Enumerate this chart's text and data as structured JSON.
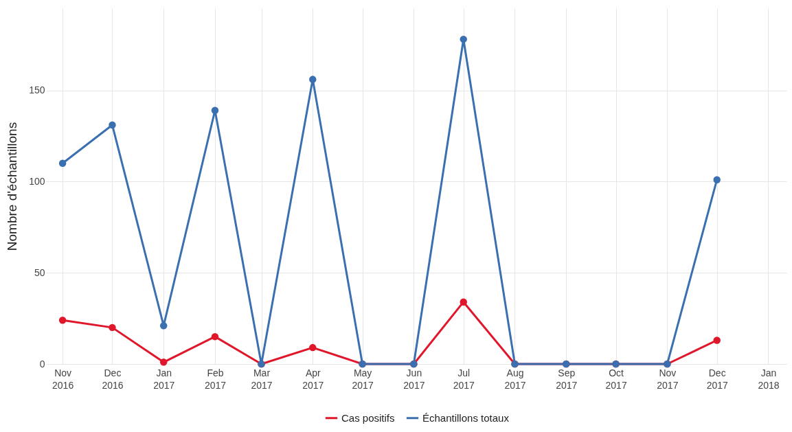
{
  "chart_data": {
    "type": "line",
    "ylabel": "Nombre d'échantillons",
    "x": [
      "2016-11",
      "2016-12",
      "2017-01",
      "2017-02",
      "2017-03",
      "2017-04",
      "2017-05",
      "2017-06",
      "2017-07",
      "2017-08",
      "2017-09",
      "2017-10",
      "2017-11",
      "2017-12"
    ],
    "series": [
      {
        "name": "Cas positifs",
        "color": "#e0172b",
        "values": [
          24,
          20,
          1,
          15,
          0,
          9,
          0,
          0,
          34,
          0,
          0,
          0,
          0,
          13
        ]
      },
      {
        "name": "Échantillons totaux",
        "color": "#3a6fb0",
        "values": [
          110,
          131,
          21,
          139,
          0,
          156,
          0,
          0,
          178,
          0,
          0,
          0,
          0,
          101
        ]
      }
    ],
    "xlim": [
      "2016-10-22",
      "2018-01-12"
    ],
    "xticks": [
      {
        "value": "2016-11",
        "label": "Nov 2016"
      },
      {
        "value": "2016-12",
        "label": "Dec 2016"
      },
      {
        "value": "2017-01",
        "label": "Jan 2017"
      },
      {
        "value": "2017-02",
        "label": "Feb 2017"
      },
      {
        "value": "2017-03",
        "label": "Mar 2017"
      },
      {
        "value": "2017-04",
        "label": "Apr 2017"
      },
      {
        "value": "2017-05",
        "label": "May 2017"
      },
      {
        "value": "2017-06",
        "label": "Jun 2017"
      },
      {
        "value": "2017-07",
        "label": "Jul 2017"
      },
      {
        "value": "2017-08",
        "label": "Aug 2017"
      },
      {
        "value": "2017-09",
        "label": "Sep 2017"
      },
      {
        "value": "2017-10",
        "label": "Oct 2017"
      },
      {
        "value": "2017-11",
        "label": "Nov 2017"
      },
      {
        "value": "2017-12",
        "label": "Dec 2017"
      },
      {
        "value": "2018-01",
        "label": "Jan 2018"
      }
    ],
    "ylim": [
      0,
      195
    ],
    "yticks": [
      0,
      50,
      100,
      150
    ],
    "grid": true,
    "legend": "bottom",
    "marker": "circle",
    "line_style": "solid"
  }
}
